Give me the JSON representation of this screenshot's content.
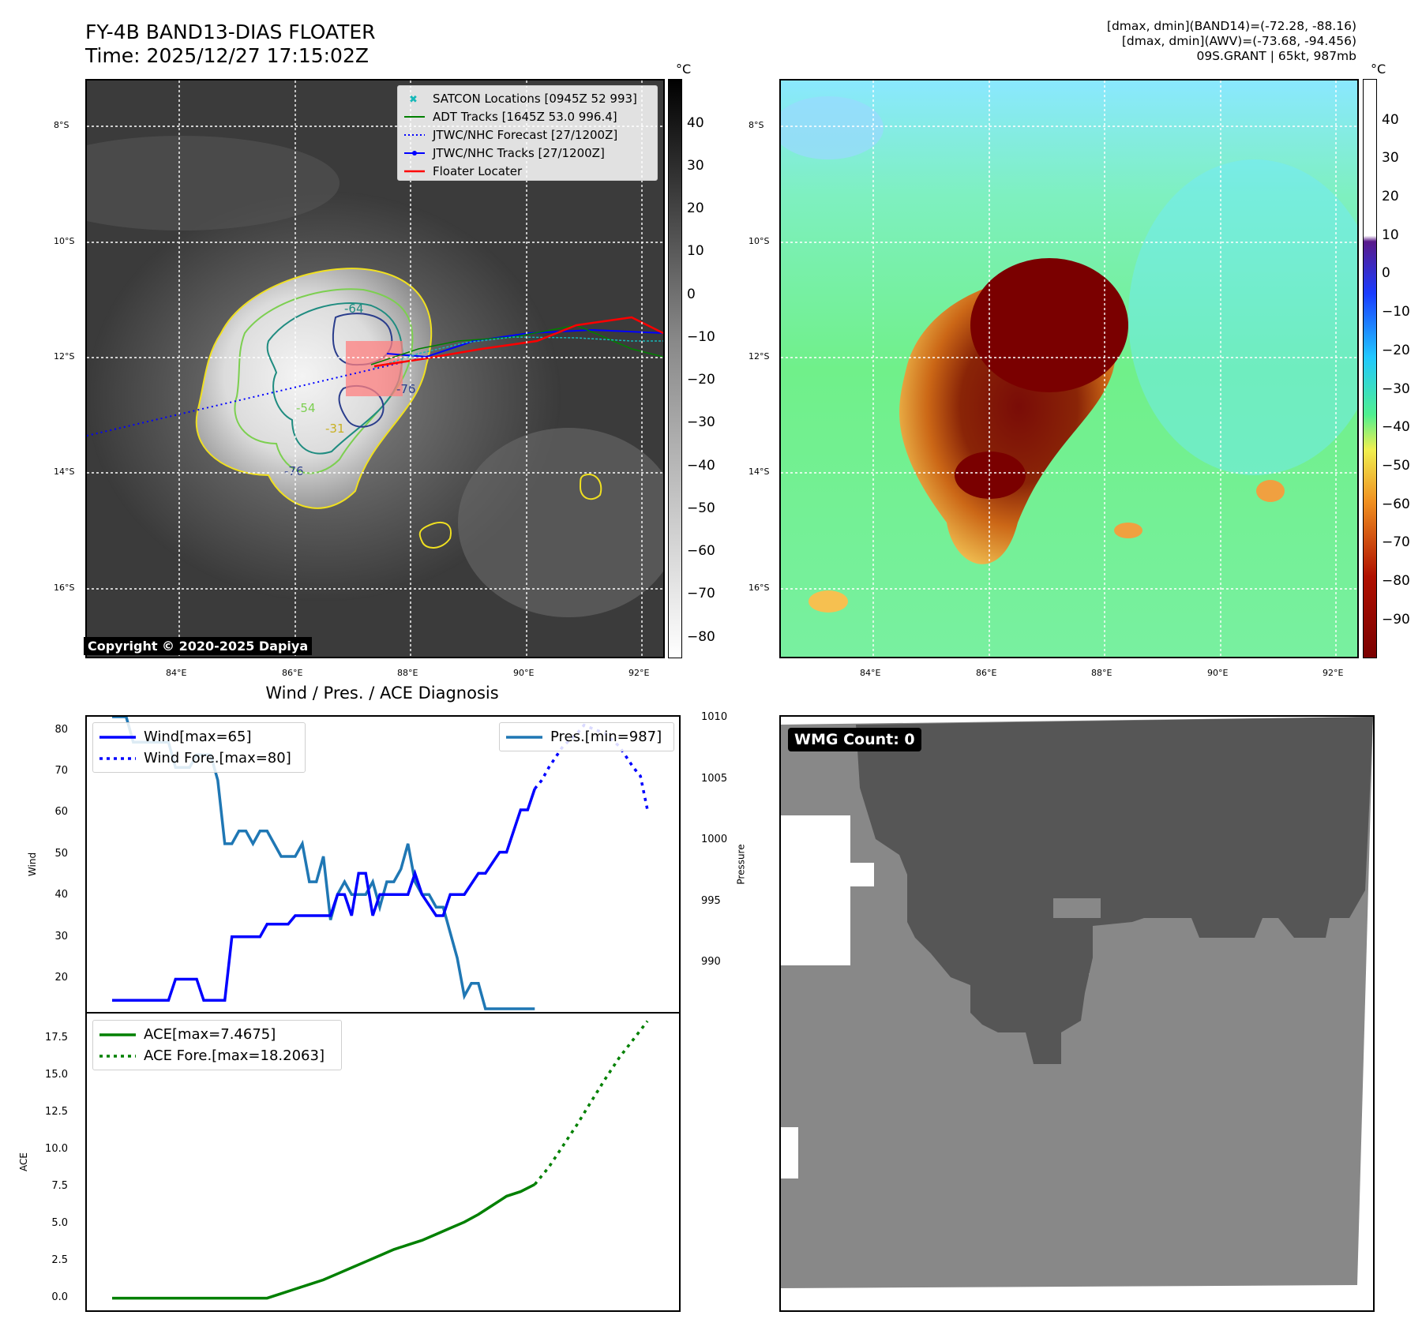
{
  "header": {
    "title_line1": "FY-4B BAND13-DIAS FLOATER",
    "title_line2": "Time: 2025/12/27 17:15:02Z",
    "info_line1": "[dmax, dmin](BAND14)=(-72.28, -88.16)",
    "info_line2": "[dmax, dmin](AWV)=(-73.68, -94.456)",
    "info_line3": "09S.GRANT | 65kt, 987mb"
  },
  "map": {
    "lat_ticks": [
      "8°S",
      "10°S",
      "12°S",
      "14°S",
      "16°S"
    ],
    "lon_ticks": [
      "84°E",
      "86°E",
      "88°E",
      "90°E",
      "92°E"
    ],
    "copyright": "Copyright © 2020-2025 Dapiya",
    "contour_labels": [
      "-64",
      "-54",
      "-31",
      "-76",
      "-76"
    ],
    "legend": [
      {
        "label": "SATCON Locations [0945Z 52 993]",
        "color": "#17b8b8",
        "style": "x-marker"
      },
      {
        "label": "ADT Tracks [1645Z 53.0 996.4]",
        "color": "#008000",
        "style": "solid"
      },
      {
        "label": "JTWC/NHC Forecast [27/1200Z]",
        "color": "#0000ff",
        "style": "dotted"
      },
      {
        "label": "JTWC/NHC Tracks [27/1200Z]",
        "color": "#0000ff",
        "style": "solid-dot"
      },
      {
        "label": "Floater Locater",
        "color": "#ff0000",
        "style": "solid"
      }
    ]
  },
  "colorbar_ir": {
    "unit": "°C",
    "ticks": [
      "40",
      "30",
      "20",
      "10",
      "0",
      "−10",
      "−20",
      "−30",
      "−40",
      "−50",
      "−60",
      "−70",
      "−80"
    ]
  },
  "colorbar_wv": {
    "unit": "°C",
    "ticks": [
      "40",
      "30",
      "20",
      "10",
      "0",
      "−10",
      "−20",
      "−30",
      "−40",
      "−50",
      "−60",
      "−70",
      "−80",
      "−90"
    ]
  },
  "diagnosis": {
    "title": "Wind / Pres. / ACE Diagnosis",
    "wind_axis_label": "Wind",
    "pres_axis_label": "Pressure",
    "ace_axis_label": "ACE",
    "wind_ticks": [
      "80",
      "70",
      "60",
      "50",
      "40",
      "30",
      "20"
    ],
    "pres_ticks": [
      "1010",
      "1005",
      "1000",
      "995",
      "990"
    ],
    "ace_ticks": [
      "17.5",
      "15.0",
      "12.5",
      "10.0",
      "7.5",
      "5.0",
      "2.5",
      "0.0"
    ],
    "legend_wind": "Wind[max=65]",
    "legend_wind_fore": "Wind Fore.[max=80]",
    "legend_pres": "Pres.[min=987]",
    "legend_ace": "ACE[max=7.4675]",
    "legend_ace_fore": "ACE Fore.[max=18.2063]"
  },
  "wmg": {
    "label": "WMG Count: 0"
  },
  "chart_data": [
    {
      "type": "line",
      "title": "Wind / Pres. / ACE Diagnosis",
      "ylabel": "Wind",
      "ylim": [
        13,
        82
      ],
      "series": [
        {
          "name": "Wind[max=65]",
          "color": "#0000ff",
          "style": "solid",
          "x": [
            0,
            8,
            9,
            12,
            13,
            16,
            17,
            20,
            21,
            22,
            25,
            26,
            28,
            29,
            31,
            32,
            33,
            34,
            35,
            36,
            37,
            38,
            39,
            40,
            41,
            42,
            43,
            44,
            46,
            47,
            48,
            49,
            50,
            52,
            53,
            55,
            56,
            58,
            59,
            60
          ],
          "values": [
            15,
            15,
            20,
            20,
            15,
            15,
            30,
            30,
            30,
            33,
            33,
            35,
            35,
            35,
            35,
            40,
            40,
            35,
            45,
            45,
            35,
            40,
            40,
            40,
            40,
            40,
            45,
            40,
            35,
            35,
            40,
            40,
            40,
            45,
            45,
            50,
            50,
            60,
            60,
            65
          ]
        },
        {
          "name": "Wind Fore.[max=80]",
          "color": "#0000ff",
          "style": "dotted",
          "x": [
            60,
            61,
            62,
            64,
            66,
            67,
            70,
            72,
            74,
            75,
            76
          ],
          "values": [
            65,
            67,
            70,
            75,
            78,
            80,
            78,
            75,
            70,
            68,
            60
          ]
        }
      ]
    },
    {
      "type": "line",
      "ylabel": "Pressure",
      "ylim": [
        987,
        1010
      ],
      "series": [
        {
          "name": "Pres.[min=987]",
          "color": "#1f77b4",
          "style": "solid",
          "x": [
            0,
            2,
            3,
            8,
            9,
            11,
            12,
            14,
            15,
            16,
            17,
            18,
            19,
            20,
            21,
            22,
            23,
            24,
            25,
            26,
            27,
            28,
            29,
            30,
            31,
            32,
            33,
            34,
            35,
            36,
            37,
            38,
            39,
            40,
            41,
            42,
            43,
            44,
            45,
            46,
            47,
            48,
            49,
            50,
            51,
            52,
            53,
            54,
            55,
            56,
            57,
            58,
            59,
            60
          ],
          "values": [
            1010,
            1010,
            1008,
            1008,
            1006,
            1006,
            1007,
            1007,
            1005,
            1000,
            1000,
            1001,
            1001,
            1000,
            1001,
            1001,
            1000,
            999,
            999,
            999,
            1000,
            997,
            997,
            999,
            994,
            996,
            997,
            996,
            996,
            996,
            997,
            995,
            997,
            997,
            998,
            1000,
            997,
            996,
            996,
            995,
            995,
            993,
            991,
            988,
            989,
            989,
            987,
            987,
            987,
            987,
            987,
            987,
            987,
            987
          ]
        }
      ]
    },
    {
      "type": "line",
      "ylabel": "ACE",
      "ylim": [
        -0.8,
        18.7
      ],
      "series": [
        {
          "name": "ACE[max=7.4675]",
          "color": "#008000",
          "style": "solid",
          "x": [
            0,
            22,
            24,
            26,
            28,
            30,
            32,
            34,
            36,
            38,
            40,
            42,
            44,
            46,
            48,
            50,
            52,
            54,
            56,
            58,
            60
          ],
          "values": [
            0,
            0,
            0.3,
            0.6,
            0.9,
            1.2,
            1.6,
            2.0,
            2.4,
            2.8,
            3.2,
            3.5,
            3.8,
            4.2,
            4.6,
            5.0,
            5.5,
            6.1,
            6.7,
            7.0,
            7.47
          ]
        },
        {
          "name": "ACE Fore.[max=18.2063]",
          "color": "#008000",
          "style": "dotted",
          "x": [
            60,
            62,
            64,
            66,
            68,
            70,
            72,
            74,
            76
          ],
          "values": [
            7.47,
            8.6,
            10.0,
            11.4,
            12.9,
            14.4,
            15.8,
            17.0,
            18.2
          ]
        }
      ]
    }
  ]
}
